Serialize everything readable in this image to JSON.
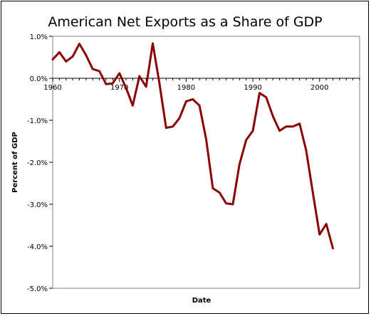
{
  "chart_data": {
    "type": "line",
    "title": "American Net Exports as a Share of GDP",
    "xlabel": "Date",
    "ylabel": "Percent of GDP",
    "xlim": [
      1960,
      2006
    ],
    "ylim": [
      -5.0,
      1.0
    ],
    "x_ticks": [
      1960,
      1970,
      1980,
      1990,
      2000
    ],
    "y_ticks": [
      "1.0%",
      "0.0%",
      "-1.0%",
      "-2.0%",
      "-3.0%",
      "-4.0%",
      "-5.0%"
    ],
    "y_tick_values": [
      1.0,
      0.0,
      -1.0,
      -2.0,
      -3.0,
      -4.0,
      -5.0
    ],
    "grid": false,
    "legend": "none",
    "series": [
      {
        "color": "#8b0000",
        "x": [
          1960,
          1961,
          1962,
          1963,
          1964,
          1965,
          1966,
          1967,
          1968,
          1969,
          1970,
          1971,
          1972,
          1973,
          1974,
          1975,
          1976,
          1977,
          1978,
          1979,
          1980,
          1981,
          1982,
          1983,
          1984,
          1985,
          1986,
          1987,
          1988,
          1989,
          1990,
          1991,
          1992,
          1993,
          1994,
          1995,
          1996,
          1997,
          1998,
          1999,
          2000,
          2001,
          2002
        ],
        "values": [
          0.45,
          0.62,
          0.4,
          0.52,
          0.82,
          0.55,
          0.22,
          0.17,
          -0.14,
          -0.12,
          0.12,
          -0.23,
          -0.65,
          0.05,
          -0.2,
          0.83,
          -0.12,
          -1.18,
          -1.15,
          -0.95,
          -0.55,
          -0.5,
          -0.65,
          -1.45,
          -2.62,
          -2.72,
          -2.98,
          -3.0,
          -2.05,
          -1.47,
          -1.25,
          -0.35,
          -0.45,
          -0.9,
          -1.25,
          -1.15,
          -1.15,
          -1.08,
          -1.72,
          -2.73,
          -3.72,
          -3.47,
          -4.05
        ]
      }
    ]
  }
}
